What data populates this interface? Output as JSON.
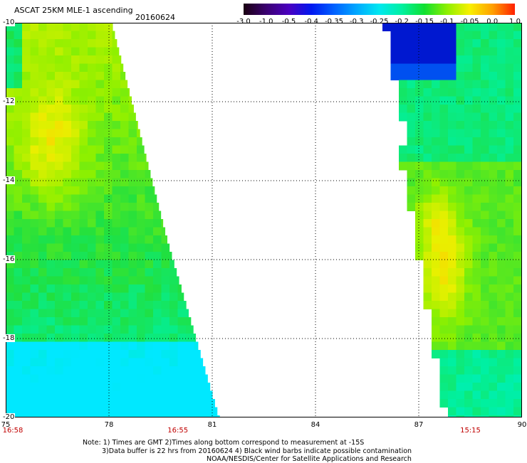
{
  "header": {
    "title": "ASCAT 25KM MLE-1 ascending",
    "date": "20160624"
  },
  "colorbar": {
    "labels": [
      "-3.0",
      "-1.0",
      "-0.5",
      "-0.4",
      "-0.35",
      "-0.3",
      "-0.25",
      "-0.2",
      "-0.15",
      "-0.1",
      "-0.05",
      "0.0",
      "1.0"
    ],
    "colors": [
      "#1a0010",
      "#3a0070",
      "#4a00c0",
      "#0018f0",
      "#0060ff",
      "#00a8ff",
      "#00e8f0",
      "#00f0a0",
      "#10e030",
      "#8ef000",
      "#f8f000",
      "#ffa000",
      "#ff2000"
    ]
  },
  "map": {
    "lat_labels": [
      "-10",
      "-12",
      "-14",
      "-16",
      "-18",
      "-20"
    ],
    "lon_labels": [
      "75",
      "78",
      "81",
      "84",
      "87",
      "90"
    ],
    "time_labels": [
      {
        "lon": "75",
        "text": "16:58"
      },
      {
        "lon": "80",
        "text": "16:55"
      },
      {
        "lon": "88.5",
        "text": "15:15"
      }
    ]
  },
  "notes": {
    "line1": "Note: 1) Times are GMT 2)Times along bottom correspond to measurement at -15S",
    "line2": "3)Data buffer is 22 hrs from 20160624 4) Black wind barbs indicate possible contamination",
    "line3": "NOAA/NESDIS/Center for Satellite Applications and Research"
  }
}
